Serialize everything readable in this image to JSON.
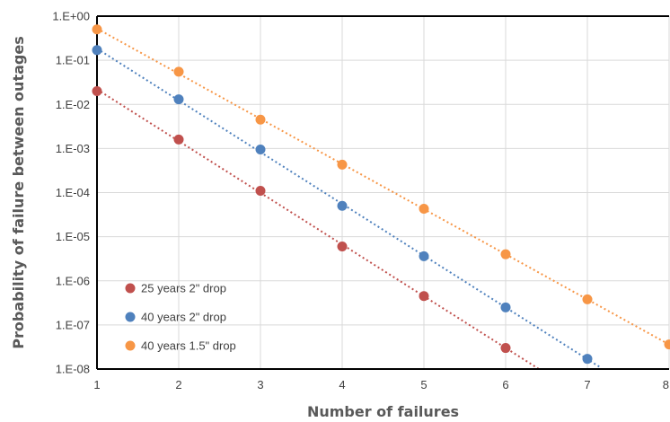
{
  "chart_data": {
    "type": "scatter",
    "xlabel": "Number of failures",
    "ylabel": "Probability of failure between outages",
    "xlim": [
      1,
      8
    ],
    "ylim_log10": [
      -8,
      0
    ],
    "y_scale": "log",
    "grid": true,
    "legend_position": "bottom-left",
    "x_ticks": [
      "1",
      "2",
      "3",
      "4",
      "5",
      "6",
      "7",
      "8"
    ],
    "y_ticks": [
      "1.E+00",
      "1.E-01",
      "1.E-02",
      "1.E-03",
      "1.E-04",
      "1.E-05",
      "1.E-06",
      "1.E-07",
      "1.E-08"
    ],
    "series": [
      {
        "name": "25 years 2\" drop",
        "color": "#c0504d",
        "x": [
          1,
          2,
          3,
          4,
          5,
          6
        ],
        "y": [
          0.02,
          0.0016,
          0.00011,
          6e-06,
          4.5e-07,
          3e-08
        ],
        "trend_x_end": 6.4
      },
      {
        "name": "40 years 2\" drop",
        "color": "#4f81bd",
        "x": [
          1,
          2,
          3,
          4,
          5,
          6,
          7
        ],
        "y": [
          0.17,
          0.013,
          0.00095,
          5e-05,
          3.6e-06,
          2.5e-07,
          1.7e-08
        ],
        "trend_x_end": 7.15
      },
      {
        "name": "40 years 1.5\" drop",
        "color": "#f79646",
        "x": [
          1,
          2,
          3,
          4,
          5,
          6,
          7,
          8
        ],
        "y": [
          0.5,
          0.055,
          0.0045,
          0.00043,
          4.3e-05,
          4e-06,
          3.8e-07,
          3.6e-08
        ],
        "trend_x_end": 8
      }
    ]
  }
}
